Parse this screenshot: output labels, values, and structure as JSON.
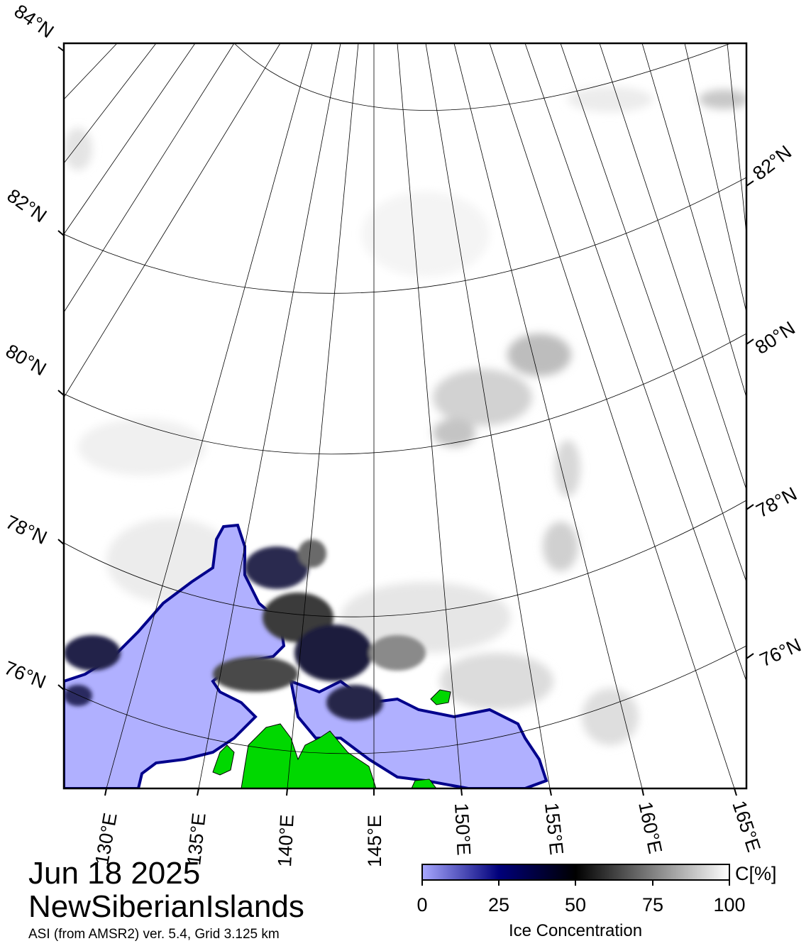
{
  "map": {
    "date": "Jun 18 2025",
    "region": "NewSiberianIslands",
    "source": "ASI (from AMSR2) ver. 5.4,  Grid 3.125 km",
    "lat_labels_left": [
      "84°N",
      "82°N",
      "80°N",
      "78°N",
      "76°N"
    ],
    "lat_labels_right": [
      "82°N",
      "80°N",
      "78°N",
      "76°N"
    ],
    "lon_labels": [
      "130°E",
      "135°E",
      "140°E",
      "145°E",
      "150°E",
      "155°E",
      "160°E",
      "165°E"
    ],
    "colors": {
      "open_water": "#b0b0ff",
      "land": "#00d800",
      "coast_ice_edge": "#00008c",
      "ice_high": "#ffffff",
      "frame": "#000000"
    }
  },
  "colorbar": {
    "title": "Ice Concentration",
    "unit": "C[%]",
    "ticks": [
      "0",
      "25",
      "50",
      "75",
      "100"
    ],
    "stops": [
      "#a8a8ff",
      "#00007a",
      "#000000",
      "#808080",
      "#ffffff"
    ]
  }
}
